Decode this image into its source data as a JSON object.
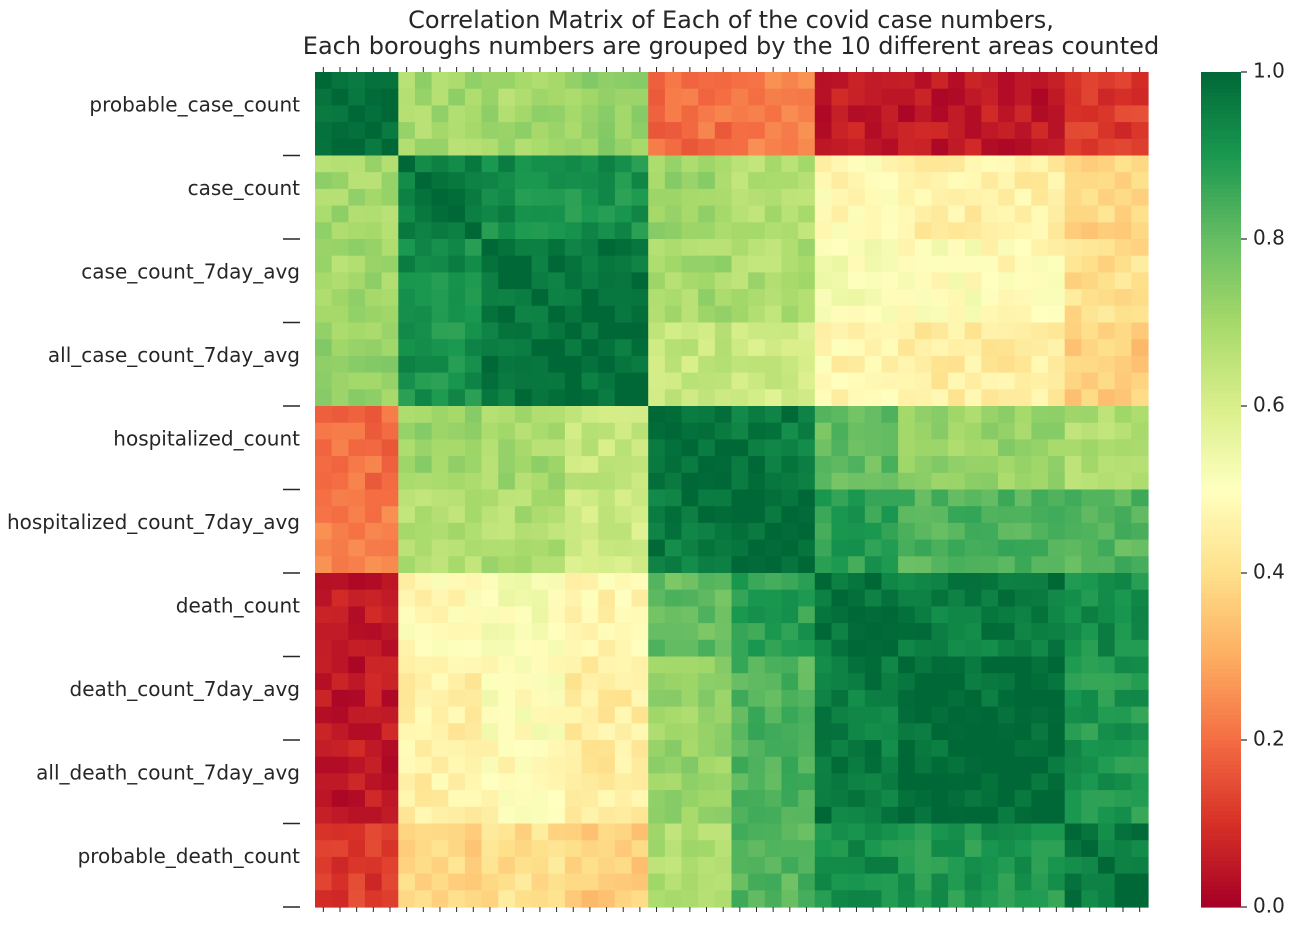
{
  "chart_data": {
    "type": "heatmap",
    "title": "Correlation Matrix of Each of the covid case numbers,",
    "subtitle": "Each boroughs numbers are grouped by the 10 different areas counted",
    "groups": [
      "probable_case_count",
      "case_count",
      "case_count_7day_avg",
      "all_case_count_7day_avg",
      "hospitalized_count",
      "hospitalized_count_7day_avg",
      "death_count",
      "death_count_7day_avg",
      "all_death_count_7day_avg",
      "probable_death_count"
    ],
    "areas_per_group": 5,
    "colormap": "RdYlGn",
    "vmin": 0.0,
    "vmax": 1.0,
    "colorbar_ticks": [
      "0.0",
      "0.2",
      "0.4",
      "0.6",
      "0.8",
      "1.0"
    ],
    "group_block_correlation": [
      [
        1.0,
        0.7,
        0.7,
        0.72,
        0.2,
        0.22,
        0.05,
        0.05,
        0.05,
        0.12
      ],
      [
        0.7,
        0.96,
        0.92,
        0.91,
        0.72,
        0.68,
        0.48,
        0.45,
        0.45,
        0.38
      ],
      [
        0.7,
        0.92,
        0.98,
        0.97,
        0.7,
        0.68,
        0.52,
        0.5,
        0.48,
        0.4
      ],
      [
        0.72,
        0.91,
        0.97,
        0.98,
        0.64,
        0.62,
        0.47,
        0.44,
        0.44,
        0.36
      ],
      [
        0.2,
        0.72,
        0.7,
        0.64,
        0.98,
        0.96,
        0.8,
        0.72,
        0.72,
        0.68
      ],
      [
        0.22,
        0.68,
        0.68,
        0.62,
        0.96,
        0.99,
        0.88,
        0.83,
        0.83,
        0.82
      ],
      [
        0.05,
        0.48,
        0.52,
        0.47,
        0.8,
        0.88,
        0.97,
        0.96,
        0.96,
        0.92
      ],
      [
        0.05,
        0.45,
        0.5,
        0.44,
        0.72,
        0.83,
        0.96,
        0.99,
        0.99,
        0.9
      ],
      [
        0.05,
        0.45,
        0.48,
        0.44,
        0.72,
        0.83,
        0.96,
        0.99,
        0.99,
        0.9
      ],
      [
        0.12,
        0.38,
        0.4,
        0.36,
        0.68,
        0.82,
        0.92,
        0.9,
        0.9,
        0.96
      ]
    ]
  }
}
